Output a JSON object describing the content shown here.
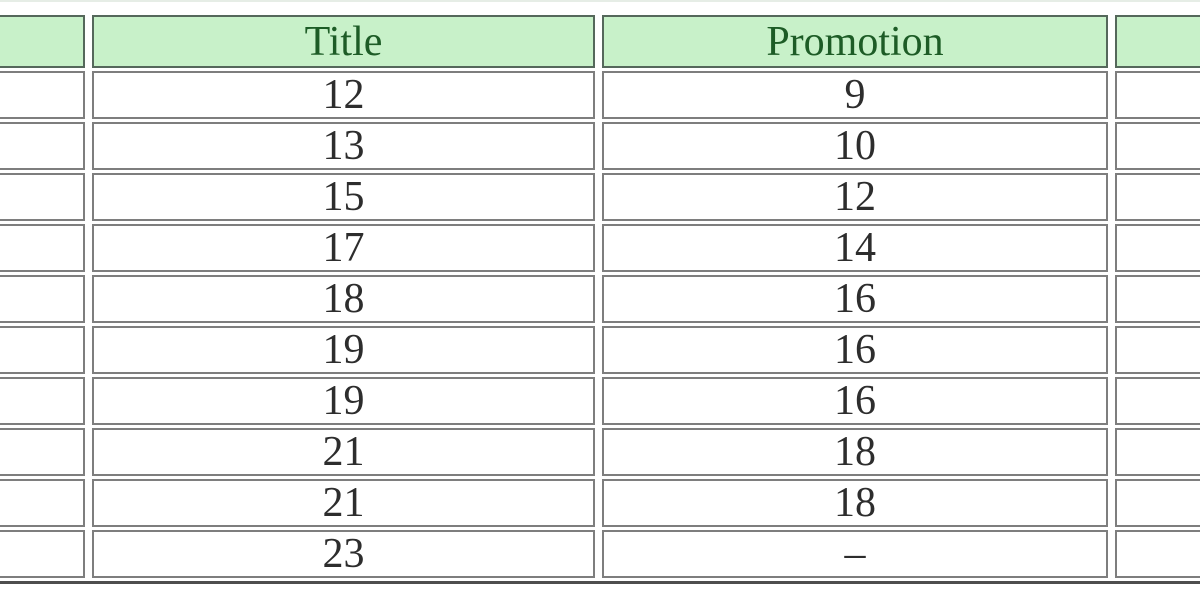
{
  "chart_data": {
    "type": "table",
    "columns": [
      "",
      "Title",
      "Promotion",
      ""
    ],
    "rows": [
      [
        "",
        "12",
        "9",
        ""
      ],
      [
        "",
        "13",
        "10",
        ""
      ],
      [
        "",
        "15",
        "12",
        ""
      ],
      [
        "",
        "17",
        "14",
        ""
      ],
      [
        "",
        "18",
        "16",
        ""
      ],
      [
        "",
        "19",
        "16",
        ""
      ],
      [
        "",
        "19",
        "16",
        ""
      ],
      [
        "",
        "21",
        "18",
        ""
      ],
      [
        "",
        "21",
        "18",
        ""
      ],
      [
        "",
        "23",
        "–",
        ""
      ]
    ],
    "layout": {
      "left_and_right_columns_cropped": true,
      "grid": "cellspacing borders",
      "legend_position": "none"
    }
  },
  "colors": {
    "header_background": "#c8f1c9",
    "header_text": "#1d5c26",
    "header_border": "#55685b",
    "cell_border": "#7e7e7e",
    "cell_text": "#2d2d2d",
    "table_bottom_border": "#4e4e4e",
    "page_background": "#ffffff"
  }
}
